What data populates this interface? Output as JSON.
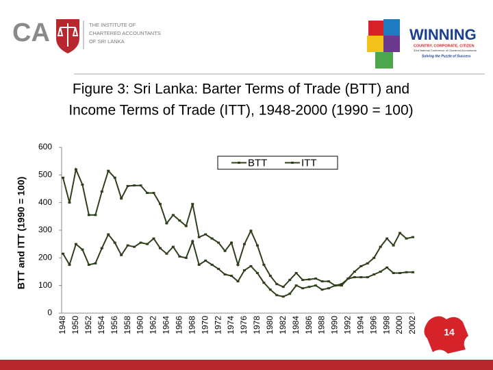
{
  "header": {
    "logo_letters": "CA",
    "institute_lines": [
      "THE INSTITUTE OF",
      "CHARTERED ACCOUNTANTS",
      "OF SRI LANKA"
    ],
    "badge_title": "WINNING",
    "badge_lines": [
      "COUNTRY, CORPORATE, CITIZEN",
      "33rd National Conference of Chartered Accountants",
      "Solving the Puzzle of Success"
    ]
  },
  "page_number": "14",
  "chart_data": {
    "type": "line",
    "title": [
      "Figure 3:  Sri Lanka: Barter Terms of Trade (BTT) and",
      "Income Terms of Trade (ITT), 1948-2000  (1990 = 100)"
    ],
    "y_label": "BTT and ITT (1990 = 100)",
    "categories": [
      "1948",
      null,
      "1950",
      null,
      "1952",
      null,
      "1954",
      null,
      "1956",
      null,
      "1958",
      null,
      "1960",
      null,
      "1962",
      null,
      "1964",
      null,
      "1966",
      null,
      "1968",
      null,
      "1970",
      null,
      "1972",
      null,
      "1974",
      null,
      "1976",
      null,
      "1978",
      null,
      "1980",
      null,
      "1982",
      null,
      "1984",
      null,
      "1986",
      null,
      "1988",
      null,
      "1990",
      null,
      "1992",
      null,
      "1994",
      null,
      "1996",
      null,
      "1998",
      null,
      "2000",
      null,
      "2002"
    ],
    "series": [
      {
        "name": "BTT",
        "color": "#2f3f1c",
        "values": [
          490,
          400,
          520,
          465,
          355,
          355,
          440,
          515,
          490,
          415,
          460,
          462,
          462,
          435,
          435,
          395,
          325,
          355,
          335,
          315,
          395,
          275,
          285,
          270,
          255,
          225,
          255,
          175,
          250,
          298,
          245,
          175,
          135,
          105,
          95,
          120,
          145,
          120,
          122,
          125,
          115,
          115,
          100,
          105,
          125,
          150,
          170,
          180,
          200,
          240,
          270,
          245,
          290,
          270,
          275
        ]
      },
      {
        "name": "ITT",
        "color": "#2f3f1c",
        "values": [
          215,
          175,
          250,
          230,
          175,
          180,
          235,
          285,
          255,
          210,
          245,
          240,
          255,
          250,
          270,
          235,
          215,
          240,
          205,
          200,
          260,
          175,
          190,
          175,
          160,
          140,
          135,
          115,
          155,
          170,
          145,
          110,
          85,
          65,
          60,
          70,
          100,
          90,
          95,
          100,
          85,
          90,
          100,
          100,
          125,
          130,
          130,
          130,
          140,
          150,
          165,
          145,
          145,
          148,
          148
        ]
      }
    ],
    "ylim": [
      0,
      600
    ],
    "yticks": [
      0,
      100,
      200,
      300,
      400,
      500,
      600
    ],
    "grid": false,
    "legend": "top"
  }
}
